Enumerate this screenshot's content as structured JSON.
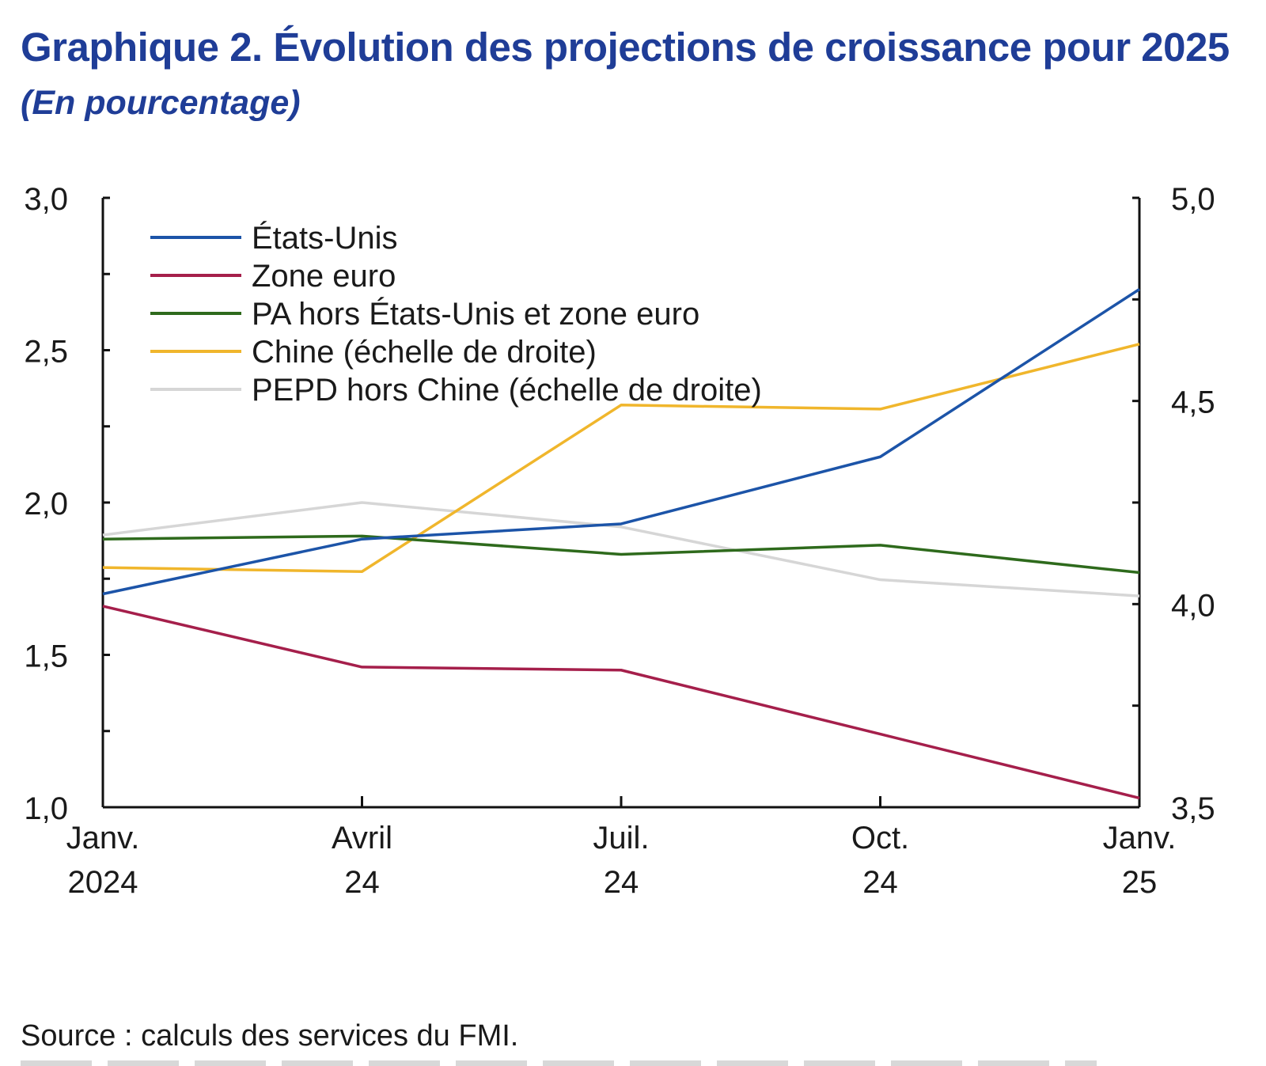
{
  "title": "Graphique 2. Évolution des projections de croissance pour 2025",
  "subtitle": "(En pourcentage)",
  "source": "Source : calculs des services du FMI.",
  "chart_data": {
    "type": "line",
    "categories": [
      [
        "Janv.",
        "2024"
      ],
      [
        "Avril",
        "24"
      ],
      [
        "Juil.",
        "24"
      ],
      [
        "Oct.",
        "24"
      ],
      [
        "Janv.",
        "25"
      ]
    ],
    "y_left": {
      "ylim": [
        1.0,
        3.0
      ],
      "ticks": [
        "1,0",
        "1,5",
        "2,0",
        "2,5",
        "3,0"
      ]
    },
    "y_right": {
      "ylim": [
        3.5,
        5.0
      ],
      "ticks": [
        "3,5",
        "4,0",
        "4,5",
        "5,0"
      ]
    },
    "legend_position": "top-left",
    "grid": false,
    "series": [
      {
        "name": "États-Unis",
        "axis": "left",
        "color": "#1c54a8",
        "values": [
          1.7,
          1.88,
          1.93,
          2.15,
          2.7
        ]
      },
      {
        "name": "Zone euro",
        "axis": "left",
        "color": "#a51f4b",
        "values": [
          1.66,
          1.46,
          1.45,
          1.24,
          1.03
        ]
      },
      {
        "name": "PA hors États-Unis et zone euro",
        "axis": "left",
        "color": "#2e6a1c",
        "values": [
          1.88,
          1.89,
          1.83,
          1.86,
          1.77
        ]
      },
      {
        "name": "Chine (échelle de droite)",
        "axis": "right",
        "color": "#f0b62c",
        "values": [
          4.09,
          4.08,
          4.49,
          4.48,
          4.64
        ]
      },
      {
        "name": "PEPD hors Chine (échelle de droite)",
        "axis": "right",
        "color": "#d6d6d6",
        "values": [
          4.17,
          4.25,
          4.19,
          4.06,
          4.02
        ]
      }
    ]
  }
}
